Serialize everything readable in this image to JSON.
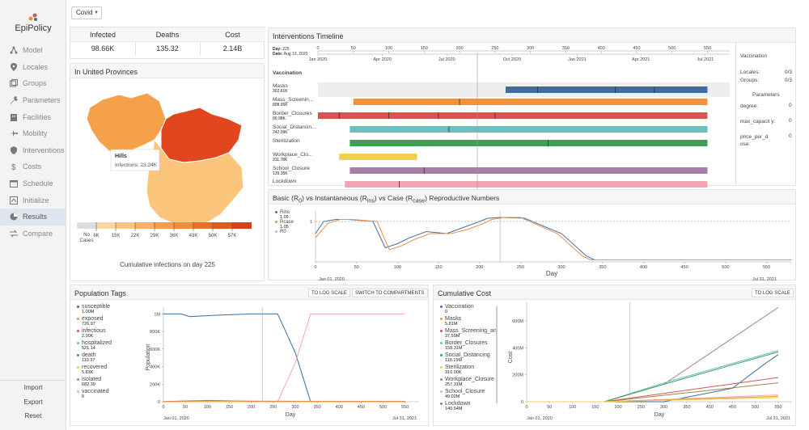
{
  "app": {
    "name": "EpiPolicy",
    "scenario": "Covid"
  },
  "colors": {
    "accent": "#3d6fa6",
    "active_nav": "#dde6ee"
  },
  "nav": [
    {
      "label": "Model",
      "icon": "model-icon"
    },
    {
      "label": "Locales",
      "icon": "pin-icon"
    },
    {
      "label": "Groups",
      "icon": "groups-icon"
    },
    {
      "label": "Parameters",
      "icon": "wrench-icon"
    },
    {
      "label": "Facilities",
      "icon": "building-icon"
    },
    {
      "label": "Mobility",
      "icon": "plane-icon"
    },
    {
      "label": "Interventions",
      "icon": "shield-icon"
    },
    {
      "label": "Costs",
      "icon": "dollar-icon"
    },
    {
      "label": "Schedule",
      "icon": "calendar-icon"
    },
    {
      "label": "Initialize",
      "icon": "init-icon"
    },
    {
      "label": "Results",
      "icon": "pie-icon"
    },
    {
      "label": "Compare",
      "icon": "compare-icon"
    }
  ],
  "bottom_nav": [
    "Import",
    "Export",
    "Reset"
  ],
  "stats": [
    {
      "label": "Infected",
      "value": "98.66K"
    },
    {
      "label": "Deaths",
      "value": "135.32"
    },
    {
      "label": "Cost",
      "value": "2.14B"
    }
  ],
  "map": {
    "title": "In United Provinces",
    "tooltip_name": "Hills",
    "tooltip_value": "Infections: 23.24K",
    "legend_labels": [
      "No Cases",
      "8K",
      "15K",
      "22K",
      "29K",
      "36K",
      "43K",
      "50K",
      "57K"
    ],
    "legend_colors": [
      "#dddddd",
      "#fbd5a4",
      "#fbc583",
      "#f9b064",
      "#f59d4b",
      "#f08a3d",
      "#e96f2d",
      "#e05a22",
      "#d4401a"
    ],
    "caption": "Cumulative infections on day 225"
  },
  "timeline": {
    "title": "Interventions Timeline",
    "day_label": "Day:",
    "day_value": "225",
    "date_label": "Date:",
    "date_value": "Aug 13, 2020",
    "day_ticks": [
      "0",
      "50",
      "100",
      "150",
      "200",
      "250",
      "300",
      "350",
      "400",
      "450",
      "500",
      "550"
    ],
    "date_ticks": [
      "Jan 2020",
      "Apr 2020",
      "Jul 2020",
      "Oct 2020",
      "Jan 2021",
      "Apr 2021",
      "Jul 2021"
    ],
    "rows": [
      {
        "name": "Vaccination",
        "sub": "",
        "color": "#3c6fa0",
        "start": 265,
        "end": 550,
        "marks": [
          310,
          420,
          475
        ],
        "bold": true
      },
      {
        "name": "Masks",
        "sub": "302.61K",
        "color": "#f0923b",
        "start": 50,
        "end": 550,
        "marks": [
          200
        ],
        "bold": false
      },
      {
        "name": "Mass_Screenin...",
        "sub": "808.95K",
        "color": "#d9534f",
        "start": 0,
        "end": 550,
        "marks": [
          30,
          100,
          170,
          250
        ],
        "bold": false
      },
      {
        "name": "Border_Closures",
        "sub": "90.98K",
        "color": "#6dbfbd",
        "start": 45,
        "end": 550,
        "marks": [
          185
        ],
        "bold": false
      },
      {
        "name": "Social_Distancin...",
        "sub": "242.09K",
        "color": "#3fa055",
        "start": 45,
        "end": 550,
        "marks": [
          325
        ],
        "bold": false
      },
      {
        "name": "Sterilization",
        "sub": "",
        "color": "#f2cf4a",
        "start": 30,
        "end": 140,
        "marks": [],
        "bold": false
      },
      {
        "name": "Workplace_Clo...",
        "sub": "311.78K",
        "color": "#a87ca7",
        "start": 45,
        "end": 550,
        "marks": [
          150
        ],
        "bold": false
      },
      {
        "name": "School_Closure",
        "sub": "139.35K",
        "color": "#f4a5b2",
        "start": 38,
        "end": 550,
        "marks": [
          115
        ],
        "bold": false
      },
      {
        "name": "Lockdown",
        "sub": "",
        "color": "#a0805a",
        "start": 45,
        "end": 550,
        "marks": [],
        "bold": false
      }
    ],
    "side_title": "Vaccination",
    "side_locales_label": "Locales:",
    "side_locales_value": "0/3",
    "side_groups_label": "Groups:",
    "side_groups_value": "0/3",
    "side_params_title": "Parameters",
    "side_params": [
      {
        "name": "degree:",
        "value": "0"
      },
      {
        "name": "max_capacit y:",
        "value": "0"
      },
      {
        "name": "price_per_d ose:",
        "value": "0"
      }
    ]
  },
  "repro": {
    "title": "Basic (R0) vs Instantaneous (Rins) vs Case (Rcase) Reproductive Numbers",
    "title_prefix": "Basic (R",
    "title_sub0": "0",
    "title_mid1": ") vs Instantaneous (R",
    "title_sub1": "ins",
    "title_mid2": ") vs Case (R",
    "title_sub2": "case",
    "title_end": ") Reproductive Numbers",
    "legend": [
      {
        "name": "Rins",
        "value": "1.05",
        "color": "#4a6fa5"
      },
      {
        "name": "Rcase",
        "value": "1.05",
        "color": "#e8914a"
      },
      {
        "name": "R0",
        "value": "",
        "color": "#bbbbbb"
      }
    ],
    "xlabel": "Day",
    "date_start": "Jan 01, 2020",
    "date_end": "Jul 31, 2021"
  },
  "population": {
    "title": "Population Tags",
    "btn_log": "TO LOG SCALE",
    "btn_switch": "SWITCH TO COMPARTMENTS",
    "legend": [
      {
        "name": "susceptible",
        "value": "1.00M",
        "color": "#3a6ea5"
      },
      {
        "name": "exposed",
        "value": "726.97",
        "color": "#f0923b"
      },
      {
        "name": "infectious",
        "value": "2.00K",
        "color": "#d9534f"
      },
      {
        "name": "hospitalized",
        "value": "521.14",
        "color": "#6dbfbd"
      },
      {
        "name": "death",
        "value": "110.37",
        "color": "#3fa055"
      },
      {
        "name": "recovered",
        "value": "5.83K",
        "color": "#f2cf4a"
      },
      {
        "name": "isolated",
        "value": "682.39",
        "color": "#a87ca7"
      },
      {
        "name": "vaccinated",
        "value": "0",
        "color": "#f4a5b2"
      }
    ],
    "ylabel": "Population",
    "xlabel": "Day",
    "date_start": "Jan 01, 2020",
    "date_end": "Jul 31, 2021",
    "yticks": [
      "0",
      "200K",
      "400K",
      "600K",
      "800K",
      "1M"
    ]
  },
  "cost": {
    "title": "Cumulative Cost",
    "btn_log": "TO LOG SCALE",
    "legend": [
      {
        "name": "Vaccination",
        "value": "0",
        "color": "#3a6ea5"
      },
      {
        "name": "Masks",
        "value": "5.81M",
        "color": "#f0923b"
      },
      {
        "name": "Mass_Screening_an",
        "value": "37.59M",
        "color": "#d9534f"
      },
      {
        "name": "Border_Closures",
        "value": "158.31M",
        "color": "#6dbfbd"
      },
      {
        "name": "Social_Distancing",
        "value": "116.15M",
        "color": "#3fa055"
      },
      {
        "name": "Sterilization",
        "value": "910.00K",
        "color": "#f2cf4a"
      },
      {
        "name": "Workplace_Closure",
        "value": "257.31M",
        "color": "#a87ca7"
      },
      {
        "name": "School_Closure",
        "value": "49.02M",
        "color": "#f4a5b2"
      },
      {
        "name": "Lockdown",
        "value": "140.54M",
        "color": "#a0805a"
      }
    ],
    "ylabel": "Cost",
    "xlabel": "Day",
    "date_start": "Jan 01, 2020",
    "date_end": "Jul 31, 2021",
    "yticks": [
      "0",
      "200M",
      "400M",
      "600M"
    ]
  },
  "chart_data": [
    {
      "type": "line",
      "title": "Basic (R0) vs Instantaneous (Rins) vs Case (Rcase) Reproductive Numbers",
      "xlabel": "Day",
      "ylabel": "",
      "xlim": [
        0,
        580
      ],
      "x_ticks": [
        "0",
        "50",
        "100",
        "150",
        "200",
        "250",
        "300",
        "350",
        "400",
        "450",
        "500",
        "550"
      ],
      "y_ticks": [
        "1"
      ],
      "series": [
        {
          "name": "Rins",
          "color": "#4a6fa5",
          "x": [
            0,
            10,
            25,
            40,
            70,
            85,
            100,
            115,
            135,
            160,
            180,
            200,
            210,
            225,
            255,
            300,
            330,
            340,
            580
          ],
          "y": [
            0.7,
            1.0,
            1.05,
            1.05,
            1.0,
            0.35,
            0.45,
            0.6,
            0.75,
            0.7,
            0.85,
            1.0,
            1.08,
            1.1,
            1.08,
            0.7,
            0.15,
            0.05,
            0.05
          ]
        },
        {
          "name": "Rcase",
          "color": "#e8914a",
          "x": [
            0,
            15,
            30,
            45,
            75,
            90,
            105,
            120,
            140,
            165,
            185,
            205,
            215,
            230,
            250,
            295,
            325,
            335,
            580
          ],
          "y": [
            0.6,
            0.95,
            1.05,
            1.05,
            1.0,
            0.3,
            0.4,
            0.55,
            0.7,
            0.7,
            0.8,
            0.95,
            1.05,
            1.1,
            1.1,
            0.7,
            0.15,
            0.05,
            0.05
          ]
        },
        {
          "name": "R0",
          "color": "#bbbbbb",
          "x": [
            0,
            580
          ],
          "y": [
            1.0,
            1.0
          ]
        }
      ]
    },
    {
      "type": "line",
      "title": "Population Tags",
      "xlabel": "Day",
      "ylabel": "Population",
      "xlim": [
        0,
        580
      ],
      "ylim": [
        0,
        1050000
      ],
      "x_ticks": [
        "0",
        "50",
        "100",
        "150",
        "200",
        "250",
        "300",
        "350",
        "400",
        "450",
        "500",
        "550"
      ],
      "series": [
        {
          "name": "susceptible",
          "color": "#3a6ea5",
          "x": [
            0,
            40,
            60,
            120,
            200,
            260,
            300,
            335
          ],
          "y": [
            1000000,
            1000000,
            970000,
            985000,
            1000000,
            1000000,
            560000,
            0
          ]
        },
        {
          "name": "vaccinated",
          "color": "#f4a5b2",
          "x": [
            0,
            260,
            300,
            335,
            400,
            550
          ],
          "y": [
            0,
            0,
            440000,
            1000000,
            1000000,
            1000000
          ]
        },
        {
          "name": "recovered",
          "color": "#f2cf4a",
          "x": [
            0,
            100,
            200,
            550
          ],
          "y": [
            0,
            5000,
            5830,
            5830
          ]
        },
        {
          "name": "infectious",
          "color": "#d9534f",
          "x": [
            0,
            110,
            190,
            250,
            550
          ],
          "y": [
            2000,
            15000,
            6000,
            3000,
            2000
          ]
        },
        {
          "name": "exposed",
          "color": "#f0923b",
          "x": [
            0,
            110,
            550
          ],
          "y": [
            800,
            8000,
            700
          ]
        }
      ]
    },
    {
      "type": "line",
      "title": "Cumulative Cost",
      "xlabel": "Day",
      "ylabel": "Cost",
      "xlim": [
        0,
        580
      ],
      "ylim": [
        0,
        720000000
      ],
      "x_ticks": [
        "0",
        "50",
        "100",
        "150",
        "200",
        "250",
        "300",
        "350",
        "400",
        "450",
        "500",
        "550"
      ],
      "y_ticks": [
        "0",
        "200M",
        "400M",
        "600M"
      ],
      "series": [
        {
          "name": "Workplace_Closure",
          "color": "#a87ca7",
          "x": [
            0,
            170,
            300,
            550
          ],
          "y": [
            0,
            0,
            130000000,
            700000000
          ]
        },
        {
          "name": "Border_Closures",
          "color": "#6dbfbd",
          "x": [
            0,
            170,
            300,
            550
          ],
          "y": [
            0,
            0,
            140000000,
            380000000
          ]
        },
        {
          "name": "Social_Distancing",
          "color": "#3fa055",
          "x": [
            0,
            170,
            300,
            550
          ],
          "y": [
            0,
            0,
            130000000,
            370000000
          ]
        },
        {
          "name": "Vaccination",
          "color": "#3a6ea5",
          "x": [
            0,
            300,
            450,
            520,
            550
          ],
          "y": [
            0,
            0,
            100000000,
            280000000,
            350000000
          ]
        },
        {
          "name": "Lockdown",
          "color": "#a0805a",
          "x": [
            0,
            170,
            550
          ],
          "y": [
            0,
            0,
            140000000
          ]
        },
        {
          "name": "Mass_Screening_an",
          "color": "#d9534f",
          "x": [
            0,
            170,
            550
          ],
          "y": [
            0,
            0,
            180000000
          ]
        },
        {
          "name": "School_Closure",
          "color": "#f4a5b2",
          "x": [
            0,
            170,
            550
          ],
          "y": [
            0,
            0,
            50000000
          ]
        },
        {
          "name": "Masks",
          "color": "#f0923b",
          "x": [
            0,
            170,
            550
          ],
          "y": [
            0,
            0,
            40000000
          ]
        },
        {
          "name": "Sterilization",
          "color": "#f2cf4a",
          "x": [
            0,
            170,
            550
          ],
          "y": [
            0,
            0,
            30000000
          ]
        }
      ]
    }
  ]
}
